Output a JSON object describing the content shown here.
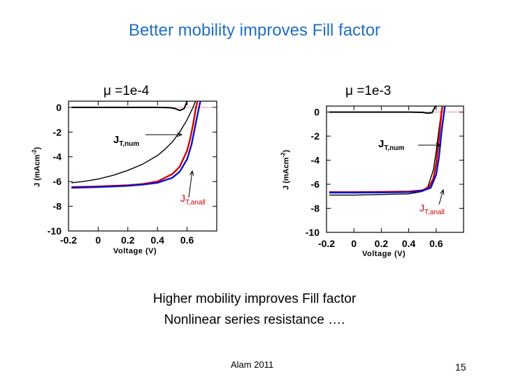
{
  "slide": {
    "title": "Better mobility improves Fill factor",
    "caption_line1": "Higher mobility improves Fill factor",
    "caption_line2": "Nonlinear series resistance ….",
    "footer_credit": "Alam 2011",
    "page_number": "15"
  },
  "colors": {
    "title": "#1f6fc5",
    "numerical": "#000000",
    "analytical_red": "#d00000",
    "analytical_blue": "#1010c8",
    "reference": "#c00000"
  },
  "chart_data": [
    {
      "type": "line",
      "title": "μ =1e-4",
      "xlabel": "Voltage (V)",
      "ylabel_main": "J (mAcm",
      "ylabel_sup": "-2",
      "ylabel_end": ")",
      "xlim": [
        -0.2,
        0.8
      ],
      "ylim": [
        -10,
        0.5
      ],
      "xticks": [
        -0.2,
        0,
        0.2,
        0.4,
        0.6
      ],
      "xtick_labels": [
        "-0.2",
        "0",
        "0.2",
        "0.4",
        "0.6"
      ],
      "yticks": [
        0,
        -2,
        -4,
        -6,
        -8,
        -10
      ],
      "ytick_labels": [
        "0",
        "-2",
        "-4",
        "-6",
        "-8",
        "-10"
      ],
      "annotation_num": {
        "main": "J",
        "sub": "T,num"
      },
      "annotation_anall": {
        "main": "J",
        "sub": "T,anall"
      },
      "series": [
        {
          "name": "numerical",
          "color": "#000000",
          "x": [
            -0.18,
            -0.1,
            0.0,
            0.1,
            0.2,
            0.3,
            0.4,
            0.45,
            0.5,
            0.55,
            0.6,
            0.62,
            0.64,
            0.66,
            0.68
          ],
          "y": [
            -6.1,
            -6.0,
            -5.8,
            -5.5,
            -5.1,
            -4.6,
            -3.9,
            -3.4,
            -2.8,
            -2.0,
            -1.0,
            -0.5,
            0.0,
            0.6,
            1.2
          ]
        },
        {
          "name": "analytical-red",
          "color": "#d00000",
          "x": [
            -0.18,
            0.0,
            0.2,
            0.3,
            0.4,
            0.5,
            0.55,
            0.6,
            0.62,
            0.64,
            0.66,
            0.68,
            0.7
          ],
          "y": [
            -6.45,
            -6.4,
            -6.3,
            -6.2,
            -6.0,
            -5.4,
            -4.8,
            -3.5,
            -2.6,
            -1.4,
            0.0,
            1.0,
            1.8
          ]
        },
        {
          "name": "analytical-blue",
          "color": "#1010c8",
          "x": [
            -0.18,
            0.0,
            0.2,
            0.3,
            0.4,
            0.5,
            0.55,
            0.6,
            0.63,
            0.66,
            0.68,
            0.7,
            0.72
          ],
          "y": [
            -6.5,
            -6.45,
            -6.35,
            -6.25,
            -6.1,
            -5.7,
            -5.2,
            -4.2,
            -3.0,
            -1.2,
            0.0,
            1.0,
            1.8
          ]
        },
        {
          "name": "reference-dark",
          "color": "#000000",
          "x": [
            -0.18,
            0.0,
            0.2,
            0.4,
            0.48,
            0.52,
            0.55,
            0.58,
            0.6,
            0.62
          ],
          "y": [
            0.0,
            0.0,
            0.0,
            0.0,
            -0.02,
            -0.1,
            -0.25,
            -0.1,
            0.5,
            1.2
          ]
        }
      ]
    },
    {
      "type": "line",
      "title": "μ =1e-3",
      "xlabel": "Voltage (V)",
      "ylabel_main": "J (mAcm",
      "ylabel_sup": "-2",
      "ylabel_end": ")",
      "xlim": [
        -0.2,
        0.8
      ],
      "ylim": [
        -10,
        0.5
      ],
      "xticks": [
        -0.2,
        0,
        0.2,
        0.4,
        0.6
      ],
      "xtick_labels": [
        "-0.2",
        "0",
        "0.2",
        "0.4",
        "0.6"
      ],
      "yticks": [
        0,
        -2,
        -4,
        -6,
        -8,
        -10
      ],
      "ytick_labels": [
        "0",
        "-2",
        "-4",
        "-6",
        "-8",
        "-10"
      ],
      "annotation_num": {
        "main": "J",
        "sub": "T,num"
      },
      "annotation_anall": {
        "main": "J",
        "sub": "T,anall"
      },
      "series": [
        {
          "name": "numerical",
          "color": "#000000",
          "x": [
            -0.18,
            0.0,
            0.2,
            0.4,
            0.5,
            0.54,
            0.58,
            0.6,
            0.62,
            0.64,
            0.66
          ],
          "y": [
            -6.9,
            -6.9,
            -6.85,
            -6.8,
            -6.6,
            -6.2,
            -4.8,
            -3.3,
            -1.5,
            0.2,
            1.5
          ]
        },
        {
          "name": "analytical-red",
          "color": "#d00000",
          "x": [
            -0.18,
            0.0,
            0.2,
            0.4,
            0.5,
            0.55,
            0.58,
            0.6,
            0.62,
            0.64,
            0.66
          ],
          "y": [
            -6.65,
            -6.65,
            -6.63,
            -6.6,
            -6.5,
            -6.2,
            -5.5,
            -4.3,
            -2.3,
            0.0,
            1.5
          ]
        },
        {
          "name": "analytical-blue",
          "color": "#1010c8",
          "x": [
            -0.18,
            0.0,
            0.2,
            0.4,
            0.5,
            0.56,
            0.6,
            0.62,
            0.64,
            0.66,
            0.68
          ],
          "y": [
            -6.7,
            -6.7,
            -6.68,
            -6.65,
            -6.55,
            -6.3,
            -5.2,
            -3.8,
            -1.6,
            0.2,
            1.6
          ]
        },
        {
          "name": "reference-dark",
          "color": "#000000",
          "x": [
            -0.18,
            0.0,
            0.2,
            0.4,
            0.5,
            0.54,
            0.57,
            0.6,
            0.62
          ],
          "y": [
            0.0,
            0.0,
            0.0,
            0.0,
            -0.02,
            -0.1,
            -0.05,
            0.6,
            1.2
          ]
        }
      ]
    }
  ]
}
